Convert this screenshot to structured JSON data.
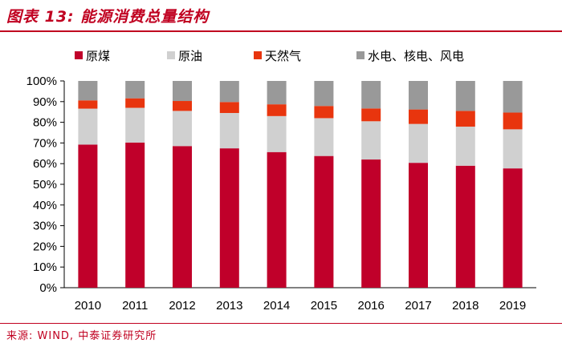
{
  "header": {
    "title": "图表 13: 能源消费总量结构"
  },
  "footer": {
    "source": "来源: WIND, 中泰证券研究所"
  },
  "colors": {
    "coal": "#c0002a",
    "oil": "#d0d0d0",
    "gas": "#e8350e",
    "other": "#999999"
  },
  "chart_data": {
    "type": "bar",
    "stacked": true,
    "title": "图表 13: 能源消费总量结构",
    "categories": [
      "2010",
      "2011",
      "2012",
      "2013",
      "2014",
      "2015",
      "2016",
      "2017",
      "2018",
      "2019"
    ],
    "series": [
      {
        "name": "原煤",
        "values": [
          69.2,
          70.2,
          68.5,
          67.4,
          65.6,
          63.7,
          62.0,
          60.4,
          59.0,
          57.7
        ]
      },
      {
        "name": "原油",
        "values": [
          17.4,
          16.8,
          17.0,
          17.1,
          17.4,
          18.3,
          18.5,
          18.8,
          18.9,
          18.9
        ]
      },
      {
        "name": "天然气",
        "values": [
          4.0,
          4.6,
          4.8,
          5.3,
          5.7,
          5.9,
          6.2,
          7.0,
          7.6,
          8.1
        ]
      },
      {
        "name": "水电、核电、风电",
        "values": [
          9.4,
          8.4,
          9.7,
          10.2,
          11.3,
          12.1,
          13.3,
          13.8,
          14.5,
          15.3
        ]
      }
    ],
    "ylim": [
      0,
      100
    ],
    "yticks": [
      "0%",
      "10%",
      "20%",
      "30%",
      "40%",
      "50%",
      "60%",
      "70%",
      "80%",
      "90%",
      "100%"
    ],
    "legend_position": "top",
    "grid": false
  }
}
